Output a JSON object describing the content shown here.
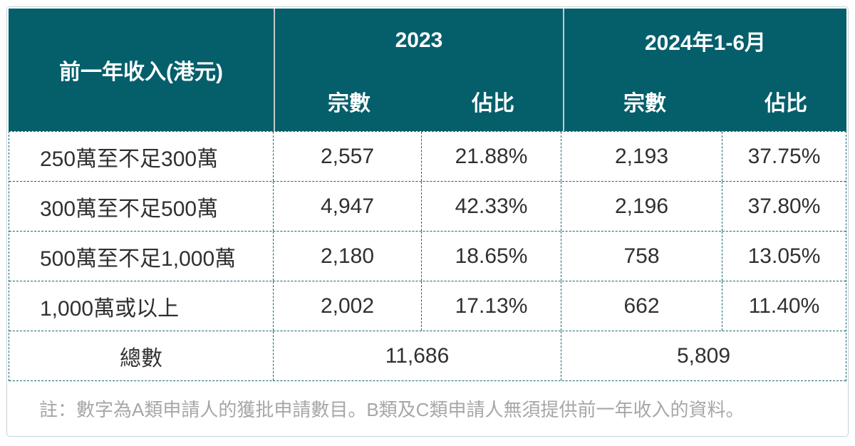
{
  "table": {
    "header": {
      "income_label": "前一年收入(港元)",
      "groups": [
        {
          "year": "2023",
          "col1": "宗數",
          "col2": "佔比"
        },
        {
          "year": "2024年1-6月",
          "col1": "宗數",
          "col2": "佔比"
        }
      ]
    },
    "rows": [
      {
        "income": "250萬至不足300萬",
        "y2023_count": "2,557",
        "y2023_share": "21.88%",
        "y2024_count": "2,193",
        "y2024_share": "37.75%"
      },
      {
        "income": "300萬至不足500萬",
        "y2023_count": "4,947",
        "y2023_share": "42.33%",
        "y2024_count": "2,196",
        "y2024_share": "37.80%"
      },
      {
        "income": "500萬至不足1,000萬",
        "y2023_count": "2,180",
        "y2023_share": "18.65%",
        "y2024_count": "758",
        "y2024_share": "13.05%"
      },
      {
        "income": "1,000萬或以上",
        "y2023_count": "2,002",
        "y2023_share": "17.13%",
        "y2024_count": "662",
        "y2024_share": "11.40%"
      }
    ],
    "total": {
      "label": "總數",
      "y2023_total": "11,686",
      "y2024_total": "5,809"
    },
    "note": "註：數字為A類申請人的獲批申請數目。B類及C類申請人無須提供前一年收入的資料。"
  },
  "colors": {
    "header_bg": "#045f6b",
    "header_text": "#ffffff",
    "dashed_border": "#156571",
    "outer_border": "#c9d0db",
    "header_divider": "#c8c8c8",
    "body_text": "#303030",
    "note_text": "#a7a7a7"
  }
}
